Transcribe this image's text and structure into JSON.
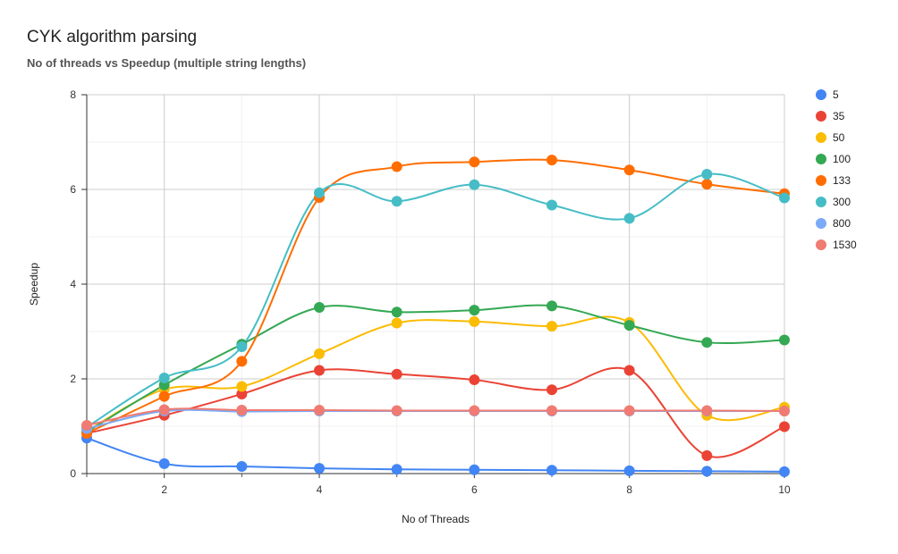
{
  "chart_data": {
    "type": "line",
    "title": "CYK algorithm parsing",
    "subtitle": "No of threads vs Speedup (multiple string lengths)",
    "xlabel": "No of Threads",
    "ylabel": "Speedup",
    "xlim": [
      1,
      10
    ],
    "ylim": [
      0,
      8
    ],
    "x_ticks": [
      "2",
      "4",
      "6",
      "8",
      "10"
    ],
    "y_ticks": [
      "0",
      "2",
      "4",
      "6",
      "8"
    ],
    "x": [
      1,
      2,
      3,
      4,
      5,
      6,
      7,
      8,
      9,
      10
    ],
    "legend_position": "right",
    "series": [
      {
        "name": "5",
        "color": "#4285f4",
        "values": [
          0.75,
          0.21,
          0.15,
          0.11,
          0.09,
          0.08,
          0.07,
          0.06,
          0.05,
          0.04
        ]
      },
      {
        "name": "35",
        "color": "#ea4335",
        "values": [
          0.85,
          1.23,
          1.68,
          2.18,
          2.1,
          1.98,
          1.77,
          2.18,
          0.38,
          0.99
        ]
      },
      {
        "name": "50",
        "color": "#fbbc04",
        "values": [
          0.9,
          1.78,
          1.84,
          2.53,
          3.18,
          3.21,
          3.11,
          3.19,
          1.23,
          1.4
        ]
      },
      {
        "name": "100",
        "color": "#34a853",
        "values": [
          0.88,
          1.87,
          2.73,
          3.51,
          3.41,
          3.45,
          3.54,
          3.13,
          2.77,
          2.82
        ]
      },
      {
        "name": "133",
        "color": "#ff6d01",
        "values": [
          0.85,
          1.63,
          2.37,
          5.83,
          6.48,
          6.58,
          6.62,
          6.41,
          6.11,
          5.91
        ]
      },
      {
        "name": "300",
        "color": "#46bdc6",
        "values": [
          0.98,
          2.02,
          2.68,
          5.93,
          5.75,
          6.1,
          5.67,
          5.39,
          6.32,
          5.82
        ]
      },
      {
        "name": "800",
        "color": "#7baaf7",
        "values": [
          0.95,
          1.32,
          1.31,
          1.32,
          1.32,
          1.32,
          1.32,
          1.32,
          1.32,
          1.32
        ]
      },
      {
        "name": "1530",
        "color": "#f07b72",
        "values": [
          1.02,
          1.35,
          1.34,
          1.34,
          1.33,
          1.33,
          1.33,
          1.33,
          1.33,
          1.32
        ]
      }
    ]
  }
}
